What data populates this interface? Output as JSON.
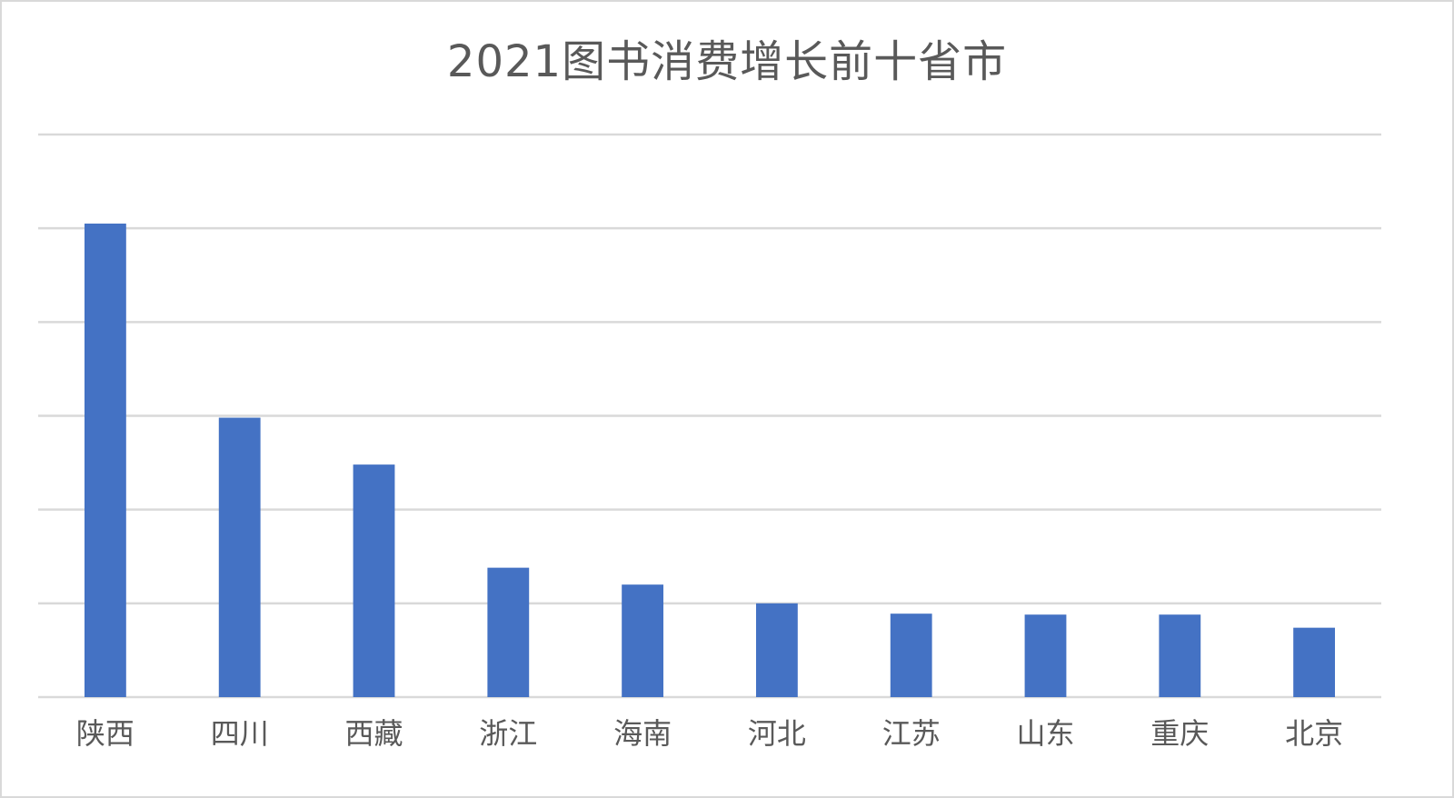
{
  "chart_data": {
    "type": "bar",
    "title": "2021图书消费增长前十省市",
    "categories": [
      "陕西",
      "四川",
      "西藏",
      "浙江",
      "海南",
      "河北",
      "江苏",
      "山东",
      "重庆",
      "北京"
    ],
    "values": [
      5.05,
      2.98,
      2.48,
      1.38,
      1.2,
      1.0,
      0.89,
      0.88,
      0.88,
      0.74
    ],
    "ylim": [
      0,
      6
    ],
    "grid": true,
    "legend": "none",
    "colors": {
      "bar": "#4472c4",
      "grid": "#d9d9d9",
      "text": "#595959"
    }
  }
}
